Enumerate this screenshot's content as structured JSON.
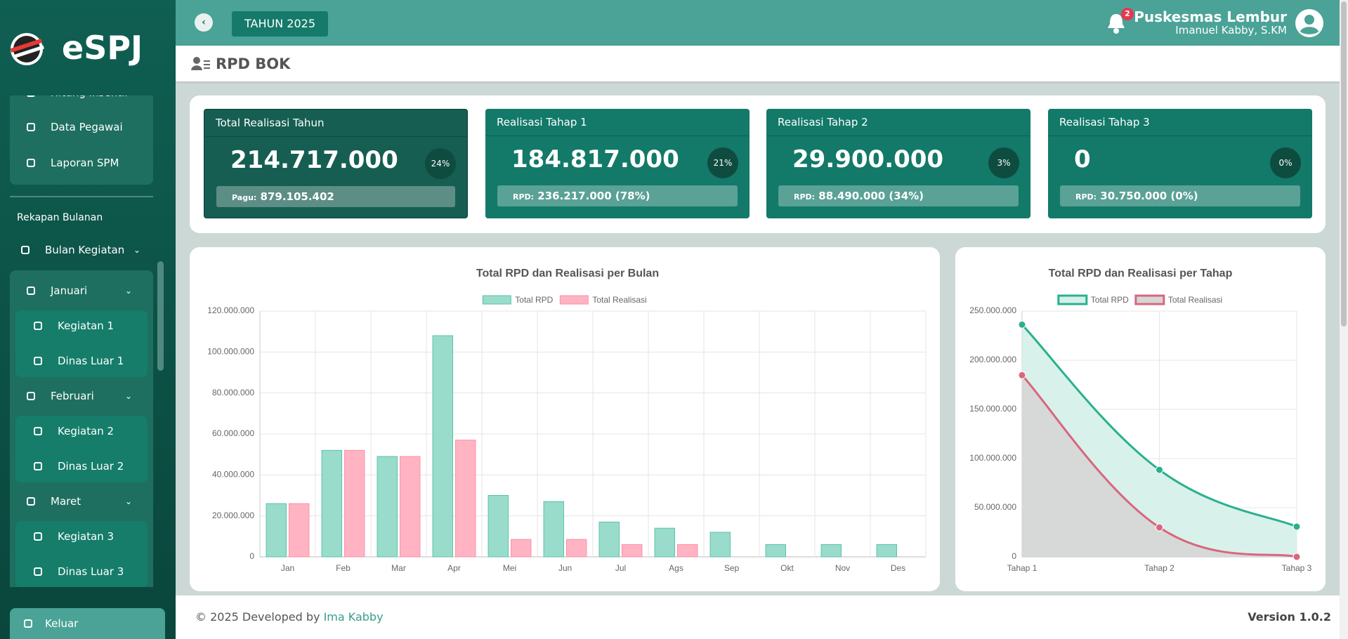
{
  "brand": "eSPJ",
  "topbar": {
    "year": "TAHUN 2025",
    "notifications": "2",
    "org": "Puskesmas Lembur",
    "user": "Imanuel Kabby, S.KM"
  },
  "page_title": "RPD BOK",
  "sidebar": {
    "menu_items": [
      "Hitung Insentif",
      "Data Pegawai",
      "Laporan SPM"
    ],
    "section": "Rekapan Bulanan",
    "menu": "Bulan Kegiatan",
    "months": [
      {
        "name": "Januari",
        "items": [
          "Kegiatan 1",
          "Dinas Luar 1"
        ]
      },
      {
        "name": "Februari",
        "items": [
          "Kegiatan 2",
          "Dinas Luar 2"
        ]
      },
      {
        "name": "Maret",
        "items": [
          "Kegiatan 3",
          "Dinas Luar 3"
        ]
      }
    ],
    "logout": "Keluar"
  },
  "cards": [
    {
      "title": "Total Realisasi Tahun",
      "value": "214.717.000",
      "percent": "24%",
      "note_label": "Pagu:",
      "note": "879.105.402"
    },
    {
      "title": "Realisasi Tahap 1",
      "value": "184.817.000",
      "percent": "21%",
      "note_label": "RPD:",
      "note": "236.217.000 (78%)"
    },
    {
      "title": "Realisasi Tahap 2",
      "value": "29.900.000",
      "percent": "3%",
      "note_label": "RPD:",
      "note": "88.490.000 (34%)"
    },
    {
      "title": "Realisasi Tahap 3",
      "value": "0",
      "percent": "0%",
      "note_label": "RPD:",
      "note": "30.750.000 (0%)"
    }
  ],
  "chart_data": [
    {
      "type": "bar",
      "title": "Total RPD dan Realisasi per Bulan",
      "categories": [
        "Jan",
        "Feb",
        "Mar",
        "Apr",
        "Mei",
        "Jun",
        "Jul",
        "Ags",
        "Sep",
        "Okt",
        "Nov",
        "Des"
      ],
      "series": [
        {
          "name": "Total RPD",
          "color": "#5cc2aa",
          "fill": "#99dccb",
          "values": [
            26000000,
            52000000,
            49000000,
            108000000,
            30000000,
            27000000,
            17000000,
            14000000,
            12000000,
            6000000,
            6000000,
            6000000
          ]
        },
        {
          "name": "Total Realisasi",
          "color": "#ff8fa6",
          "fill": "#ffb3c3",
          "values": [
            26000000,
            52000000,
            49000000,
            57000000,
            8500000,
            8500000,
            6000000,
            6000000,
            0,
            0,
            0,
            0
          ]
        }
      ],
      "ylim": [
        0,
        120000000
      ],
      "yticks": [
        0,
        {
          "value": 20000000,
          "label": "20.000.000"
        },
        {
          "value": 40000000,
          "label": "40.000.000"
        },
        {
          "value": 60000000,
          "label": "60.000.000"
        },
        {
          "value": 80000000,
          "label": "80.000.000"
        },
        {
          "value": 100000000,
          "label": "100.000.000"
        },
        {
          "value": 120000000,
          "label": "120.000.000"
        }
      ],
      "grid": true
    },
    {
      "type": "line",
      "title": "Total RPD dan Realisasi per Tahap",
      "categories": [
        "Tahap 1",
        "Tahap 2",
        "Tahap 3"
      ],
      "series": [
        {
          "name": "Total RPD",
          "color": "#2bb08f",
          "fill": "#d4f0e9",
          "values": [
            236217000,
            88490000,
            30750000
          ]
        },
        {
          "name": "Total Realisasi",
          "color": "#d9667e",
          "fill": "#d6d6d6",
          "values": [
            184817000,
            29900000,
            0
          ]
        }
      ],
      "ylim": [
        0,
        250000000
      ],
      "yticks": [
        0,
        {
          "value": 50000000,
          "label": "50.000.000"
        },
        {
          "value": 100000000,
          "label": "100.000.000"
        },
        {
          "value": 150000000,
          "label": "150.000.000"
        },
        {
          "value": 200000000,
          "label": "200.000.000"
        },
        {
          "value": 250000000,
          "label": "250.000.000"
        }
      ],
      "grid": true
    }
  ],
  "footer": {
    "copyright": "© 2025 Developed by",
    "author": "Ima Kabby",
    "version": "Version 1.0.2"
  }
}
